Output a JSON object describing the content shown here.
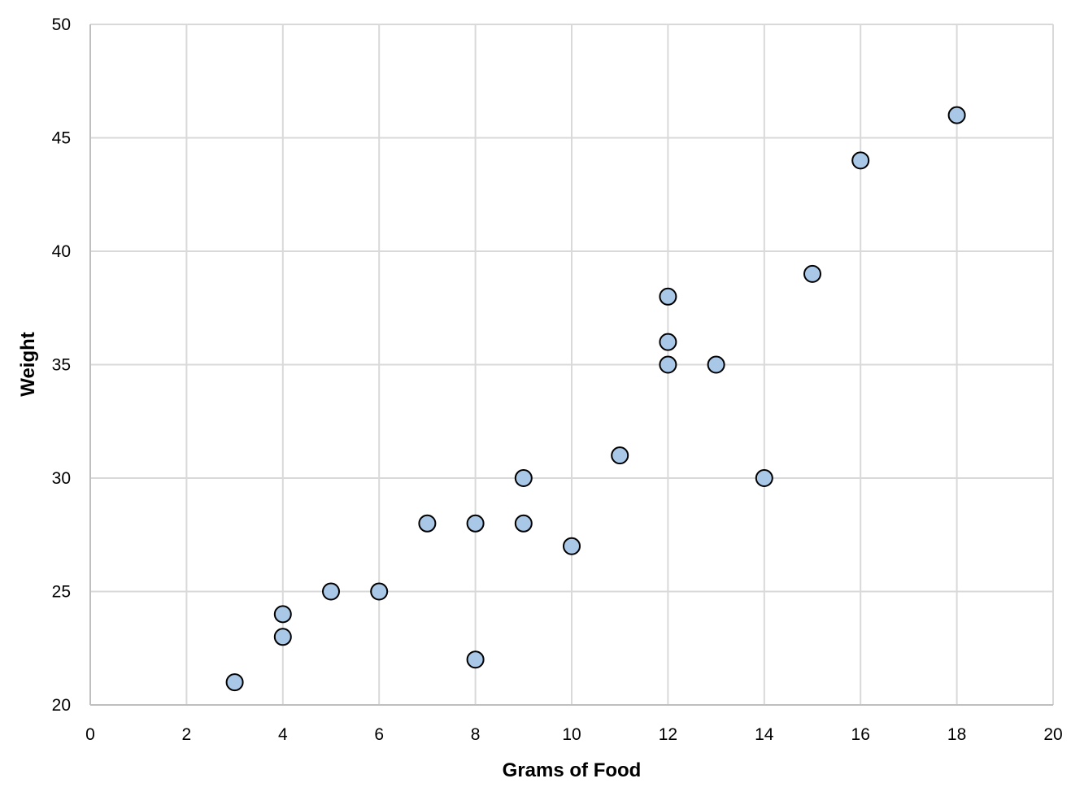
{
  "chart_data": {
    "type": "scatter",
    "title": "",
    "xlabel": "Grams of Food",
    "ylabel": "Weight",
    "xlim": [
      0,
      20
    ],
    "ylim": [
      20,
      50
    ],
    "x_ticks": [
      0,
      2,
      4,
      6,
      8,
      10,
      12,
      14,
      16,
      18,
      20
    ],
    "y_ticks": [
      20,
      25,
      30,
      35,
      40,
      45,
      50
    ],
    "x_tick_labels": [
      "0",
      "2",
      "4",
      "6",
      "8",
      "10",
      "12",
      "14",
      "16",
      "18",
      "20"
    ],
    "y_tick_labels": [
      "20",
      "25",
      "30",
      "35",
      "40",
      "45",
      "50"
    ],
    "grid": true,
    "legend": "none",
    "marker_color": "#a9c8e8",
    "marker_edge_color": "#000000",
    "points": [
      {
        "x": 3,
        "y": 21
      },
      {
        "x": 4,
        "y": 23
      },
      {
        "x": 4,
        "y": 24
      },
      {
        "x": 5,
        "y": 25
      },
      {
        "x": 6,
        "y": 25
      },
      {
        "x": 7,
        "y": 28
      },
      {
        "x": 8,
        "y": 22
      },
      {
        "x": 8,
        "y": 28
      },
      {
        "x": 9,
        "y": 28
      },
      {
        "x": 9,
        "y": 30
      },
      {
        "x": 10,
        "y": 27
      },
      {
        "x": 11,
        "y": 31
      },
      {
        "x": 12,
        "y": 35
      },
      {
        "x": 12,
        "y": 36
      },
      {
        "x": 12,
        "y": 38
      },
      {
        "x": 13,
        "y": 35
      },
      {
        "x": 14,
        "y": 30
      },
      {
        "x": 15,
        "y": 39
      },
      {
        "x": 16,
        "y": 44
      },
      {
        "x": 18,
        "y": 46
      }
    ]
  }
}
